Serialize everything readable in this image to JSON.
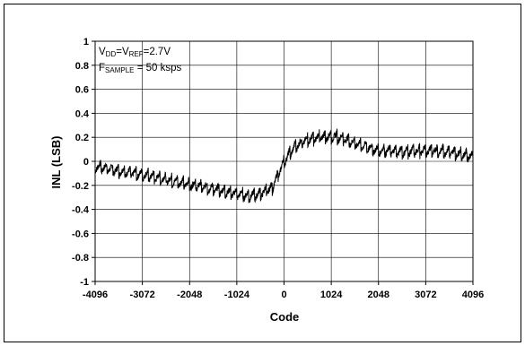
{
  "chart_data": {
    "type": "line",
    "title": "",
    "xlabel": "Code",
    "ylabel": "INL (LSB)",
    "xlim": [
      -4096,
      4096
    ],
    "ylim": [
      -1,
      1
    ],
    "x_ticks": [
      "-4096",
      "-3072",
      "-2048",
      "-1024",
      "0",
      "1024",
      "2048",
      "3072",
      "4096"
    ],
    "y_ticks": [
      "1",
      "0.8",
      "0.6",
      "0.4",
      "0.2",
      "0",
      "-0.2",
      "-0.4",
      "-0.6",
      "-0.8",
      "-1"
    ],
    "grid": true,
    "line_color": "#000000",
    "annotation": {
      "line1": {
        "v": "V",
        "dd": "DD",
        "eq1": "=V",
        "ref": "REF",
        "val": "=2.7V"
      },
      "line2": {
        "f": "F",
        "sample": "SAMPLE",
        "val": " = 50 ksps"
      }
    },
    "series": [
      {
        "x": [
          -4096,
          -3584,
          -3072,
          -2560,
          -2048,
          -1536,
          -1024,
          -768,
          -512,
          -256,
          0,
          256,
          512,
          768,
          1024,
          1280,
          1536,
          2048,
          2560,
          3072,
          3584,
          4096
        ],
        "y": [
          -0.04,
          -0.08,
          -0.11,
          -0.15,
          -0.19,
          -0.23,
          -0.27,
          -0.29,
          -0.27,
          -0.22,
          0.0,
          0.13,
          0.18,
          0.2,
          0.21,
          0.19,
          0.15,
          0.09,
          0.08,
          0.09,
          0.08,
          0.04
        ]
      }
    ]
  }
}
